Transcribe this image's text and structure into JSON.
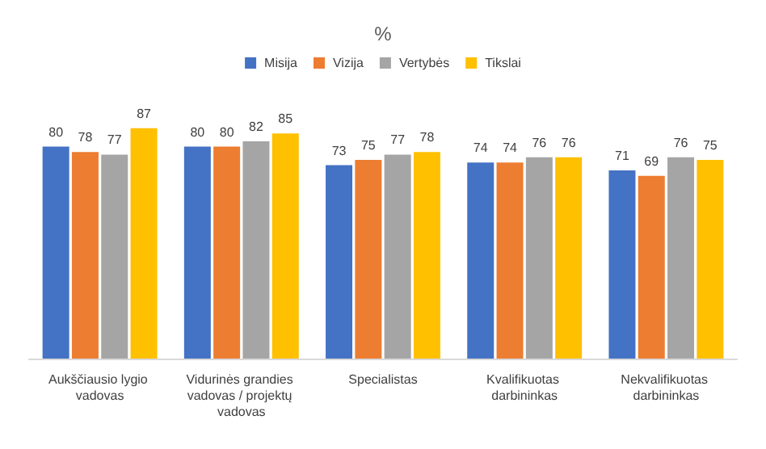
{
  "chart_data": {
    "type": "bar",
    "title": "%",
    "categories": [
      "Aukščiausio lygio vadovas",
      "Vidurinės grandies vadovas / projektų vadovas",
      "Specialistas",
      "Kvalifikuotas darbininkas",
      "Nekvalifikuotas darbininkas"
    ],
    "series": [
      {
        "name": "Misija",
        "color": "#4472c4",
        "values": [
          80,
          80,
          73,
          74,
          71
        ]
      },
      {
        "name": "Vizija",
        "color": "#ed7d31",
        "values": [
          78,
          80,
          75,
          74,
          69
        ]
      },
      {
        "name": "Vertybės",
        "color": "#a5a5a5",
        "values": [
          77,
          82,
          77,
          76,
          76
        ]
      },
      {
        "name": "Tikslai",
        "color": "#ffc000",
        "values": [
          87,
          85,
          78,
          76,
          75
        ]
      }
    ],
    "data_labels": true,
    "legend": "top",
    "grid": false
  }
}
